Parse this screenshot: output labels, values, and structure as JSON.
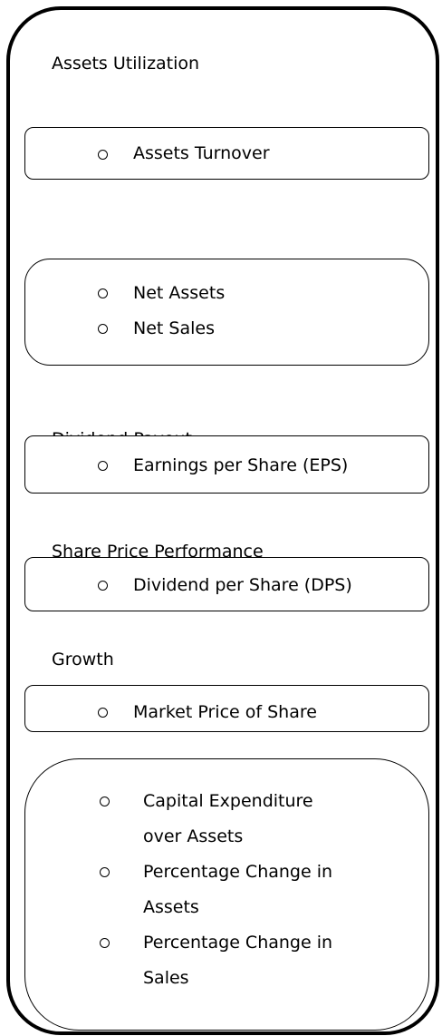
{
  "headings": [
    "Assets Utilization",
    "Dividend Payout",
    "Share Price Performance",
    "Growth"
  ],
  "boxes": [
    [
      "Assets Turnover"
    ],
    [
      "Net Assets",
      "Net Sales"
    ],
    [
      "Earnings per Share (EPS)"
    ],
    [
      "Dividend per Share (DPS)"
    ],
    [
      "Market Price of Share"
    ],
    [
      "Capital Expenditure over Assets",
      "Percentage Change in Assets",
      "Percentage Change in Sales"
    ]
  ]
}
